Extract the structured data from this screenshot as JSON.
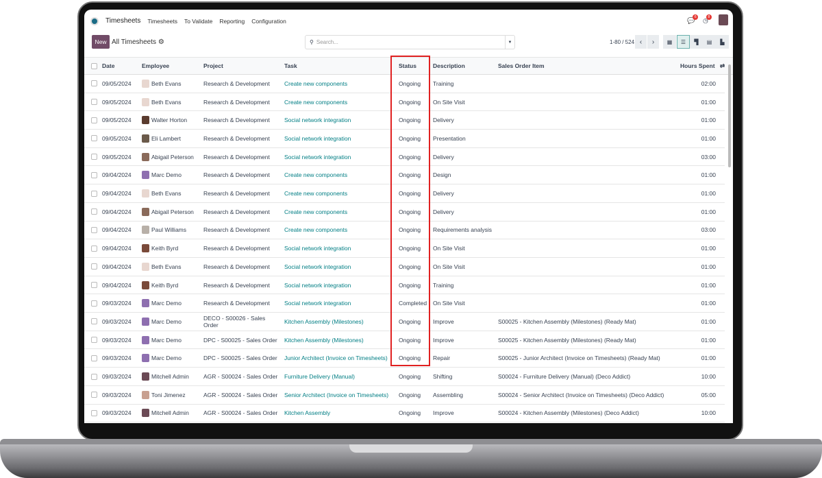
{
  "nav": {
    "app": "Timesheets",
    "menu": [
      "Timesheets",
      "To Validate",
      "Reporting",
      "Configuration"
    ],
    "messages_badge": "6",
    "activity_badge": "8"
  },
  "control": {
    "new_label": "New",
    "title": "All Timesheets",
    "search_placeholder": "Search...",
    "pager": "1-80 / 524",
    "views": [
      "kanban",
      "list",
      "grid",
      "pivot",
      "graph"
    ],
    "active_view": "list"
  },
  "columns": [
    "Date",
    "Employee",
    "Project",
    "Task",
    "Status",
    "Description",
    "Sales Order Item",
    "Hours Spent"
  ],
  "colors": {
    "brand": "#714b67",
    "link": "#017e84",
    "highlight": "#e02020"
  },
  "rows": [
    [
      "09/05/2024",
      "Beth Evans",
      "Research & Development",
      "Create new components",
      "Ongoing",
      "Training",
      "",
      "02:00"
    ],
    [
      "09/05/2024",
      "Beth Evans",
      "Research & Development",
      "Create new components",
      "Ongoing",
      "On Site Visit",
      "",
      "01:00"
    ],
    [
      "09/05/2024",
      "Walter Horton",
      "Research & Development",
      "Social network integration",
      "Ongoing",
      "Delivery",
      "",
      "01:00"
    ],
    [
      "09/05/2024",
      "Eli Lambert",
      "Research & Development",
      "Social network integration",
      "Ongoing",
      "Presentation",
      "",
      "01:00"
    ],
    [
      "09/05/2024",
      "Abigail Peterson",
      "Research & Development",
      "Social network integration",
      "Ongoing",
      "Delivery",
      "",
      "03:00"
    ],
    [
      "09/04/2024",
      "Marc Demo",
      "Research & Development",
      "Create new components",
      "Ongoing",
      "Design",
      "",
      "01:00"
    ],
    [
      "09/04/2024",
      "Beth Evans",
      "Research & Development",
      "Create new components",
      "Ongoing",
      "Delivery",
      "",
      "01:00"
    ],
    [
      "09/04/2024",
      "Abigail Peterson",
      "Research & Development",
      "Create new components",
      "Ongoing",
      "Delivery",
      "",
      "01:00"
    ],
    [
      "09/04/2024",
      "Paul Williams",
      "Research & Development",
      "Create new components",
      "Ongoing",
      "Requirements analysis",
      "",
      "03:00"
    ],
    [
      "09/04/2024",
      "Keith Byrd",
      "Research & Development",
      "Social network integration",
      "Ongoing",
      "On Site Visit",
      "",
      "01:00"
    ],
    [
      "09/04/2024",
      "Beth Evans",
      "Research & Development",
      "Social network integration",
      "Ongoing",
      "On Site Visit",
      "",
      "01:00"
    ],
    [
      "09/04/2024",
      "Keith Byrd",
      "Research & Development",
      "Social network integration",
      "Ongoing",
      "Training",
      "",
      "01:00"
    ],
    [
      "09/03/2024",
      "Marc Demo",
      "Research & Development",
      "Social network integration",
      "Completed",
      "On Site Visit",
      "",
      "01:00"
    ],
    [
      "09/03/2024",
      "Marc Demo",
      "DECO - S00026 - Sales Order",
      "Kitchen Assembly (Milestones)",
      "Ongoing",
      "Improve",
      "S00025 - Kitchen Assembly (Milestones) (Ready Mat)",
      "01:00"
    ],
    [
      "09/03/2024",
      "Marc Demo",
      "DPC - S00025 - Sales Order",
      "Kitchen Assembly (Milestones)",
      "Ongoing",
      "Improve",
      "S00025 - Kitchen Assembly (Milestones) (Ready Mat)",
      "01:00"
    ],
    [
      "09/03/2024",
      "Marc Demo",
      "DPC - S00025 - Sales Order",
      "Junior Architect (Invoice on Timesheets)",
      "Ongoing",
      "Repair",
      "S00025 - Junior Architect (Invoice on Timesheets) (Ready Mat)",
      "01:00"
    ],
    [
      "09/03/2024",
      "Mitchell Admin",
      "AGR - S00024 - Sales Order",
      "Furniture Delivery (Manual)",
      "Ongoing",
      "Shifting",
      "S00024 - Furniture Delivery (Manual) (Deco Addict)",
      "10:00"
    ],
    [
      "09/03/2024",
      "Toni Jimenez",
      "AGR - S00024 - Sales Order",
      "Senior Architect (Invoice on Timesheets)",
      "Ongoing",
      "Assembling",
      "S00024 - Senior Architect (Invoice on Timesheets) (Deco Addict)",
      "05:00"
    ],
    [
      "09/03/2024",
      "Mitchell Admin",
      "AGR - S00024 - Sales Order",
      "Kitchen Assembly",
      "Ongoing",
      "Improve",
      "S00024 - Kitchen Assembly (Milestones) (Deco Addict)",
      "10:00"
    ]
  ]
}
